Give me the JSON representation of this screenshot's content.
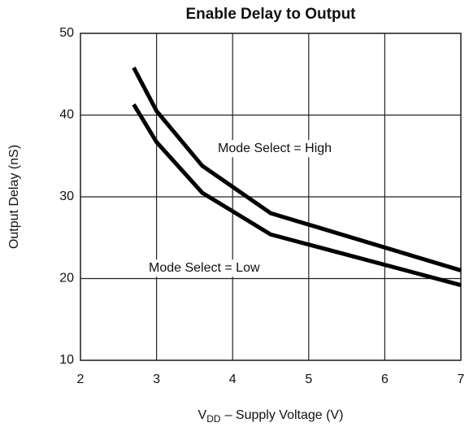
{
  "chart_data": {
    "type": "line",
    "title": "Enable Delay to Output",
    "x_label": [
      "V",
      "DD",
      "– Supply Voltage (V)"
    ],
    "y_label": "Output Delay (nS)",
    "xlim": [
      2,
      7
    ],
    "xticks": [
      2,
      3,
      4,
      5,
      6,
      7
    ],
    "ylim": [
      10,
      50
    ],
    "yticks": [
      10,
      20,
      30,
      40,
      50
    ],
    "grid": true,
    "series": [
      {
        "name": "Mode Select = High",
        "color": "#000000",
        "x": [
          2.7,
          3.0,
          3.6,
          4.5,
          7.0
        ],
        "values": [
          45.8,
          40.5,
          33.8,
          28.0,
          21.0
        ]
      },
      {
        "name": "Mode Select = Low",
        "color": "#000000",
        "x": [
          2.7,
          3.0,
          3.6,
          4.5,
          7.0
        ],
        "values": [
          41.3,
          36.7,
          30.5,
          25.4,
          19.2
        ]
      }
    ]
  }
}
